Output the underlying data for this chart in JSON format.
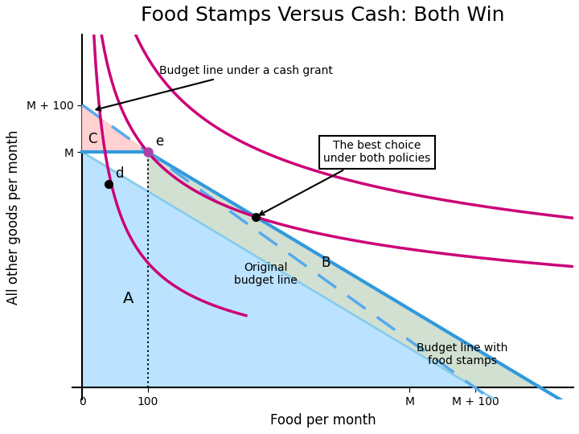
{
  "title": "Food Stamps Versus Cash: Both Win",
  "xlabel": "Food per month",
  "ylabel": "All other goods per month",
  "title_fontsize": 18,
  "label_fontsize": 12,
  "colors": {
    "blue_line": "#3399DD",
    "dashed_blue": "#55AAEE",
    "magenta": "#CC0077",
    "pink_fill": "#FFCCCC",
    "blue_fill": "#AADDFF",
    "green_fill": "#CCDDCC",
    "orig_line": "#88CCEE"
  },
  "M_val": 5,
  "fs_val": 1,
  "note_best": "The best choice\nunder both policies",
  "note_cash": "Budget line under a cash grant",
  "note_orig": "Original\nbudget line",
  "note_stamp": "Budget line with\nfood stamps",
  "label_A": "A",
  "label_B": "B",
  "label_C": "C",
  "label_d": "d",
  "label_e": "e"
}
